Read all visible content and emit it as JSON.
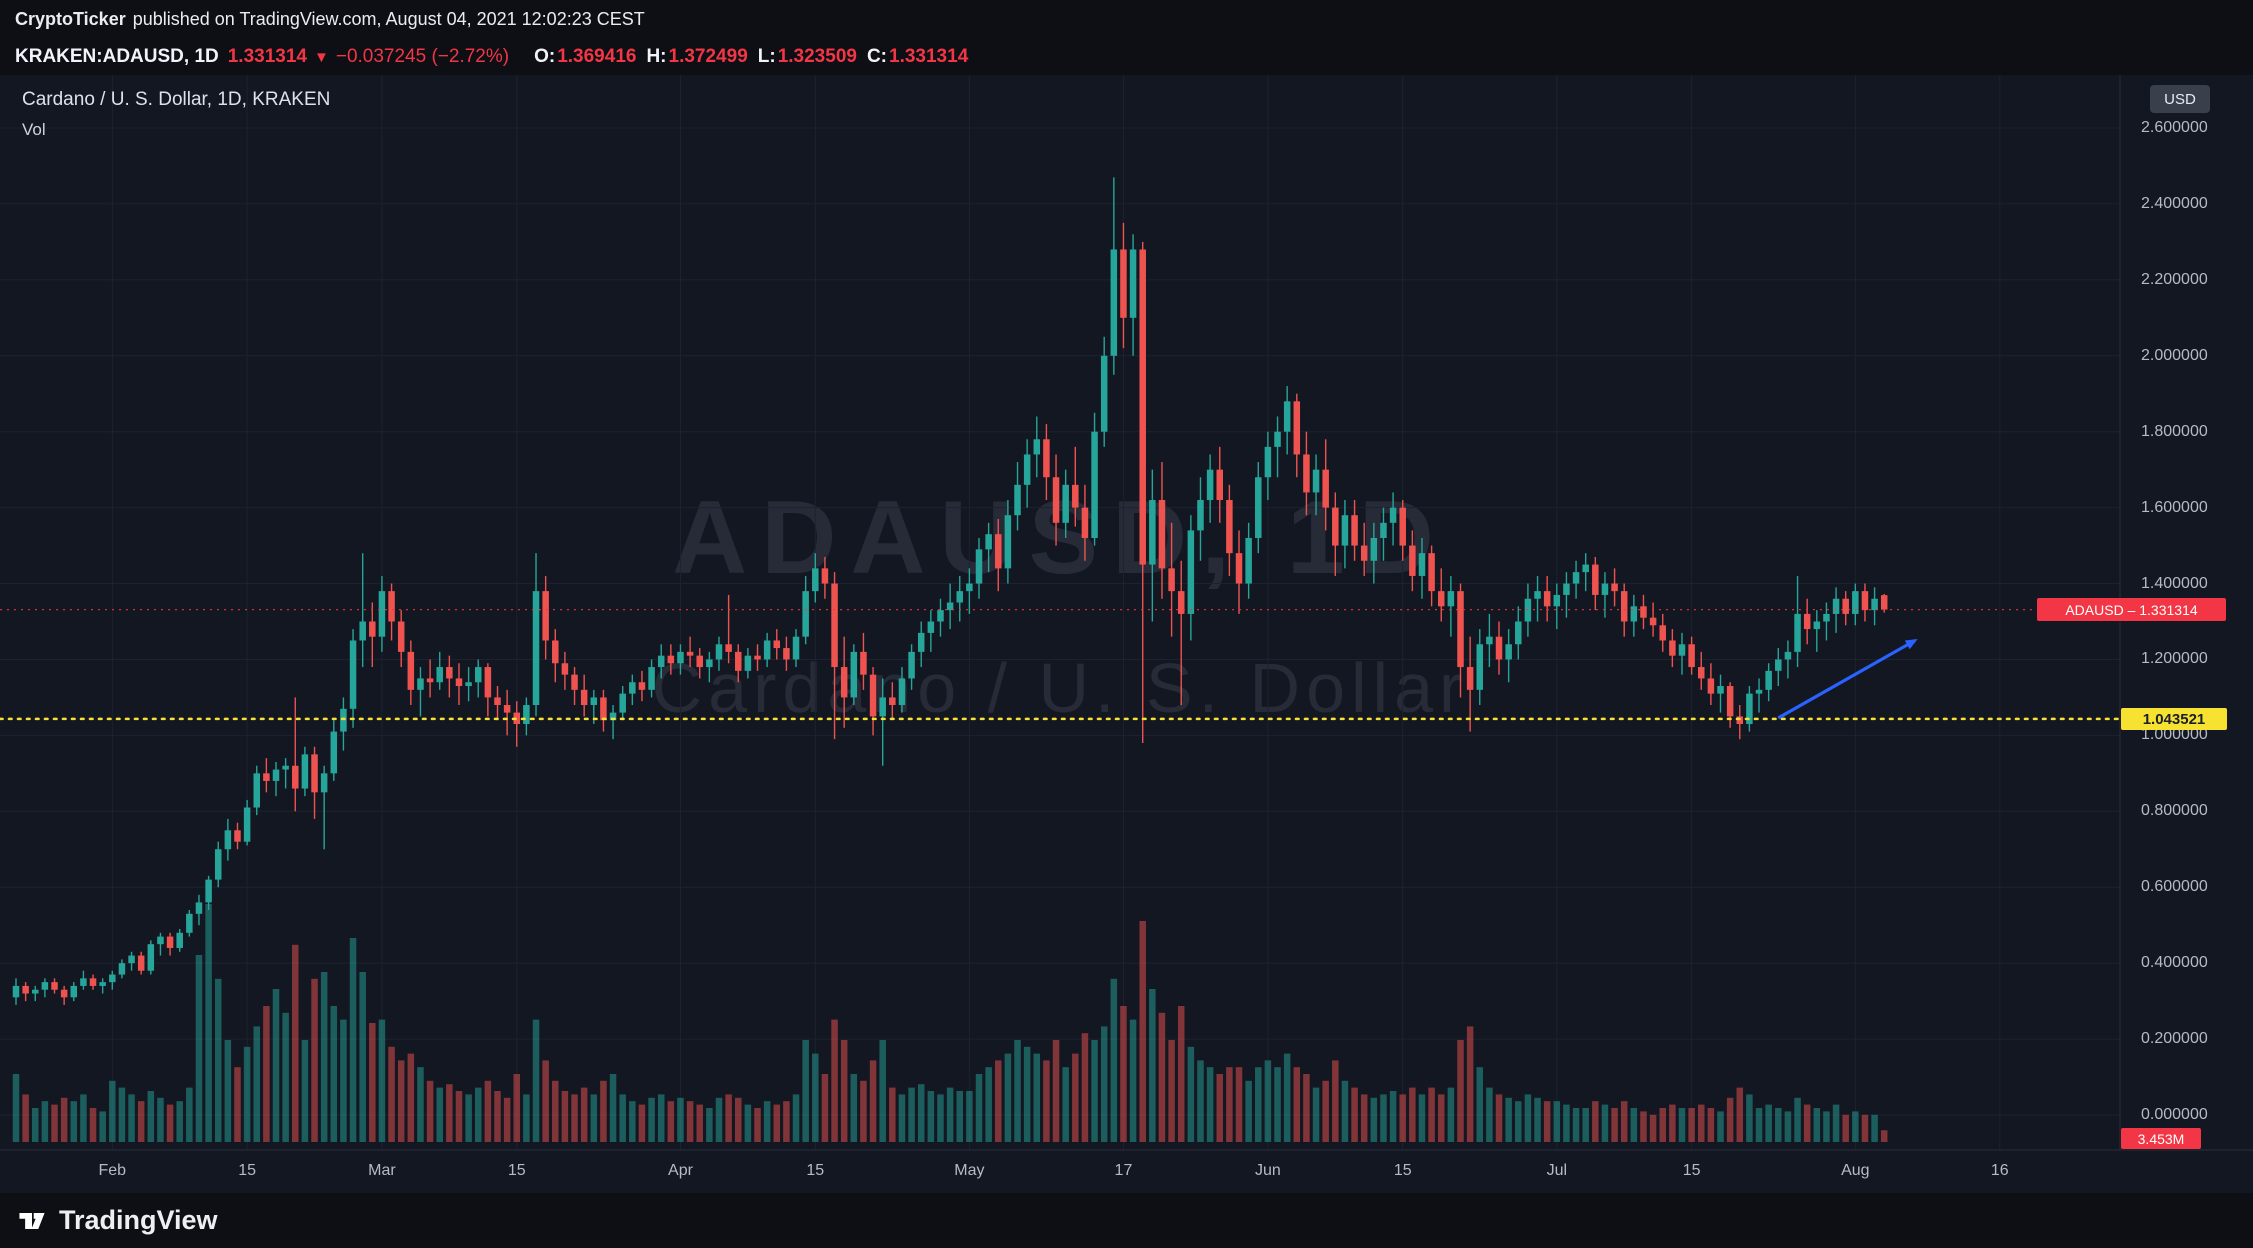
{
  "attribution": {
    "author": "CryptoTicker",
    "rest": "published on TradingView.com, August 04, 2021 12:02:23 CEST"
  },
  "symbol_bar": {
    "symbol_interval": "KRAKEN:ADAUSD, 1D",
    "last": "1.331314",
    "direction_icon": "▼",
    "change": "−0.037245 (−2.72%)",
    "ohlc": [
      {
        "k": "O:",
        "v": "1.369416"
      },
      {
        "k": "H:",
        "v": "1.372499"
      },
      {
        "k": "L:",
        "v": "1.323509"
      },
      {
        "k": "C:",
        "v": "1.331314"
      }
    ]
  },
  "legend": {
    "title": "Cardano / U. S. Dollar, 1D, KRAKEN",
    "indicator": "Vol"
  },
  "watermark": {
    "line1": "ADAUSD, 1D",
    "line2": "Cardano / U. S. Dollar"
  },
  "axis": {
    "currency": "USD",
    "price_ticks": [
      "2.600000",
      "2.400000",
      "2.200000",
      "2.000000",
      "1.800000",
      "1.600000",
      "1.400000",
      "1.200000",
      "1.000000",
      "0.800000",
      "0.600000",
      "0.400000",
      "0.200000",
      "0.000000"
    ],
    "time_ticks": [
      {
        "label": "Feb",
        "day": 10
      },
      {
        "label": "15",
        "day": 24
      },
      {
        "label": "Mar",
        "day": 38
      },
      {
        "label": "15",
        "day": 52
      },
      {
        "label": "Apr",
        "day": 69
      },
      {
        "label": "15",
        "day": 83
      },
      {
        "label": "May",
        "day": 99
      },
      {
        "label": "17",
        "day": 115
      },
      {
        "label": "Jun",
        "day": 130
      },
      {
        "label": "15",
        "day": 144
      },
      {
        "label": "Jul",
        "day": 160
      },
      {
        "label": "15",
        "day": 174
      },
      {
        "label": "Aug",
        "day": 191
      },
      {
        "label": "16",
        "day": 206
      }
    ]
  },
  "badges": {
    "last": "ADAUSD – 1.331314",
    "support": "1.043521",
    "volume": "3.453M"
  },
  "footer": {
    "brand": "TradingView"
  },
  "colors": {
    "up": "#26a69a",
    "down": "#ef5350",
    "accent_red": "#f23645",
    "support_yellow": "#f7e232",
    "arrow_blue": "#2962ff",
    "background": "#131722"
  },
  "chart_data": {
    "type": "candlestick",
    "title": "Cardano / U. S. Dollar, 1D, KRAKEN",
    "symbol": "ADAUSD",
    "exchange": "KRAKEN",
    "interval": "1D",
    "start_date": "2021-01-22",
    "price_axis_range": [
      0.0,
      2.6
    ],
    "grid": true,
    "volume_unit": "M",
    "columns": [
      "open",
      "high",
      "low",
      "close",
      "volume_millions"
    ],
    "candles": [
      [
        0.31,
        0.36,
        0.29,
        0.34,
        20
      ],
      [
        0.34,
        0.35,
        0.3,
        0.32,
        14
      ],
      [
        0.32,
        0.34,
        0.3,
        0.33,
        10
      ],
      [
        0.33,
        0.36,
        0.31,
        0.35,
        12
      ],
      [
        0.35,
        0.36,
        0.32,
        0.33,
        11
      ],
      [
        0.33,
        0.34,
        0.29,
        0.31,
        13
      ],
      [
        0.31,
        0.35,
        0.3,
        0.34,
        12
      ],
      [
        0.34,
        0.38,
        0.33,
        0.36,
        14
      ],
      [
        0.36,
        0.37,
        0.33,
        0.34,
        10
      ],
      [
        0.34,
        0.36,
        0.32,
        0.35,
        9
      ],
      [
        0.35,
        0.38,
        0.33,
        0.37,
        18
      ],
      [
        0.37,
        0.41,
        0.36,
        0.4,
        16
      ],
      [
        0.4,
        0.43,
        0.38,
        0.42,
        14
      ],
      [
        0.42,
        0.43,
        0.37,
        0.38,
        12
      ],
      [
        0.38,
        0.46,
        0.37,
        0.45,
        15
      ],
      [
        0.45,
        0.48,
        0.42,
        0.47,
        13
      ],
      [
        0.47,
        0.48,
        0.42,
        0.44,
        11
      ],
      [
        0.44,
        0.49,
        0.43,
        0.48,
        12
      ],
      [
        0.48,
        0.54,
        0.47,
        0.53,
        16
      ],
      [
        0.53,
        0.58,
        0.5,
        0.56,
        55
      ],
      [
        0.56,
        0.63,
        0.54,
        0.62,
        70
      ],
      [
        0.62,
        0.72,
        0.6,
        0.7,
        48
      ],
      [
        0.7,
        0.78,
        0.67,
        0.75,
        30
      ],
      [
        0.75,
        0.77,
        0.7,
        0.72,
        22
      ],
      [
        0.72,
        0.83,
        0.71,
        0.81,
        28
      ],
      [
        0.81,
        0.92,
        0.79,
        0.9,
        34
      ],
      [
        0.9,
        0.94,
        0.85,
        0.88,
        40
      ],
      [
        0.88,
        0.93,
        0.84,
        0.91,
        45
      ],
      [
        0.91,
        0.94,
        0.86,
        0.92,
        38
      ],
      [
        0.92,
        1.1,
        0.8,
        0.86,
        58
      ],
      [
        0.86,
        0.97,
        0.84,
        0.95,
        30
      ],
      [
        0.95,
        0.97,
        0.78,
        0.85,
        48
      ],
      [
        0.85,
        0.92,
        0.7,
        0.9,
        50
      ],
      [
        0.9,
        1.04,
        0.88,
        1.01,
        40
      ],
      [
        1.01,
        1.1,
        0.96,
        1.07,
        36
      ],
      [
        1.07,
        1.28,
        1.02,
        1.25,
        60
      ],
      [
        1.25,
        1.48,
        1.18,
        1.3,
        50
      ],
      [
        1.3,
        1.35,
        1.18,
        1.26,
        35
      ],
      [
        1.26,
        1.42,
        1.22,
        1.38,
        36
      ],
      [
        1.38,
        1.4,
        1.25,
        1.3,
        28
      ],
      [
        1.3,
        1.33,
        1.18,
        1.22,
        24
      ],
      [
        1.22,
        1.25,
        1.08,
        1.12,
        26
      ],
      [
        1.12,
        1.18,
        1.05,
        1.15,
        22
      ],
      [
        1.15,
        1.2,
        1.1,
        1.14,
        18
      ],
      [
        1.14,
        1.22,
        1.12,
        1.18,
        16
      ],
      [
        1.18,
        1.21,
        1.1,
        1.15,
        17
      ],
      [
        1.15,
        1.19,
        1.08,
        1.13,
        15
      ],
      [
        1.13,
        1.18,
        1.09,
        1.14,
        14
      ],
      [
        1.14,
        1.2,
        1.1,
        1.18,
        16
      ],
      [
        1.18,
        1.19,
        1.05,
        1.1,
        18
      ],
      [
        1.1,
        1.13,
        1.04,
        1.08,
        15
      ],
      [
        1.08,
        1.12,
        1.0,
        1.06,
        13
      ],
      [
        1.06,
        1.09,
        0.97,
        1.03,
        20
      ],
      [
        1.03,
        1.1,
        1.0,
        1.08,
        14
      ],
      [
        1.08,
        1.48,
        1.05,
        1.38,
        36
      ],
      [
        1.38,
        1.42,
        1.2,
        1.25,
        24
      ],
      [
        1.25,
        1.28,
        1.14,
        1.19,
        18
      ],
      [
        1.19,
        1.22,
        1.12,
        1.16,
        15
      ],
      [
        1.16,
        1.18,
        1.08,
        1.12,
        14
      ],
      [
        1.12,
        1.16,
        1.05,
        1.08,
        16
      ],
      [
        1.08,
        1.12,
        1.03,
        1.1,
        14
      ],
      [
        1.1,
        1.12,
        1.01,
        1.04,
        18
      ],
      [
        1.04,
        1.08,
        0.99,
        1.06,
        20
      ],
      [
        1.06,
        1.13,
        1.04,
        1.11,
        14
      ],
      [
        1.11,
        1.16,
        1.08,
        1.14,
        12
      ],
      [
        1.14,
        1.17,
        1.09,
        1.12,
        11
      ],
      [
        1.12,
        1.2,
        1.1,
        1.18,
        13
      ],
      [
        1.18,
        1.24,
        1.15,
        1.21,
        14
      ],
      [
        1.21,
        1.24,
        1.16,
        1.19,
        12
      ],
      [
        1.19,
        1.24,
        1.16,
        1.22,
        13
      ],
      [
        1.22,
        1.26,
        1.18,
        1.21,
        12
      ],
      [
        1.21,
        1.23,
        1.15,
        1.18,
        11
      ],
      [
        1.18,
        1.22,
        1.14,
        1.2,
        10
      ],
      [
        1.2,
        1.26,
        1.17,
        1.24,
        13
      ],
      [
        1.24,
        1.37,
        1.19,
        1.22,
        14
      ],
      [
        1.22,
        1.24,
        1.14,
        1.17,
        13
      ],
      [
        1.17,
        1.23,
        1.15,
        1.21,
        11
      ],
      [
        1.21,
        1.24,
        1.17,
        1.2,
        10
      ],
      [
        1.2,
        1.27,
        1.18,
        1.25,
        12
      ],
      [
        1.25,
        1.28,
        1.2,
        1.23,
        11
      ],
      [
        1.23,
        1.26,
        1.17,
        1.2,
        12
      ],
      [
        1.2,
        1.28,
        1.18,
        1.26,
        14
      ],
      [
        1.26,
        1.42,
        1.24,
        1.38,
        30
      ],
      [
        1.38,
        1.48,
        1.35,
        1.44,
        26
      ],
      [
        1.44,
        1.47,
        1.36,
        1.4,
        20
      ],
      [
        1.4,
        1.43,
        0.99,
        1.18,
        36
      ],
      [
        1.18,
        1.26,
        1.02,
        1.1,
        30
      ],
      [
        1.1,
        1.24,
        1.08,
        1.22,
        20
      ],
      [
        1.22,
        1.27,
        1.12,
        1.16,
        18
      ],
      [
        1.16,
        1.18,
        1.0,
        1.05,
        24
      ],
      [
        1.05,
        1.15,
        0.92,
        1.1,
        30
      ],
      [
        1.1,
        1.14,
        1.04,
        1.08,
        16
      ],
      [
        1.08,
        1.18,
        1.06,
        1.15,
        14
      ],
      [
        1.15,
        1.24,
        1.12,
        1.22,
        16
      ],
      [
        1.22,
        1.3,
        1.18,
        1.27,
        17
      ],
      [
        1.27,
        1.33,
        1.22,
        1.3,
        15
      ],
      [
        1.3,
        1.36,
        1.26,
        1.33,
        14
      ],
      [
        1.33,
        1.4,
        1.28,
        1.35,
        16
      ],
      [
        1.35,
        1.42,
        1.3,
        1.38,
        15
      ],
      [
        1.38,
        1.44,
        1.32,
        1.4,
        15
      ],
      [
        1.4,
        1.52,
        1.36,
        1.49,
        20
      ],
      [
        1.49,
        1.56,
        1.43,
        1.53,
        22
      ],
      [
        1.53,
        1.57,
        1.38,
        1.44,
        24
      ],
      [
        1.44,
        1.62,
        1.4,
        1.58,
        26
      ],
      [
        1.58,
        1.72,
        1.54,
        1.66,
        30
      ],
      [
        1.66,
        1.78,
        1.6,
        1.74,
        28
      ],
      [
        1.74,
        1.84,
        1.68,
        1.78,
        26
      ],
      [
        1.78,
        1.82,
        1.62,
        1.68,
        24
      ],
      [
        1.68,
        1.74,
        1.5,
        1.56,
        30
      ],
      [
        1.56,
        1.7,
        1.52,
        1.66,
        22
      ],
      [
        1.66,
        1.76,
        1.55,
        1.6,
        26
      ],
      [
        1.6,
        1.66,
        1.46,
        1.52,
        32
      ],
      [
        1.52,
        1.85,
        1.5,
        1.8,
        30
      ],
      [
        1.8,
        2.05,
        1.76,
        2.0,
        34
      ],
      [
        2.0,
        2.47,
        1.95,
        2.28,
        48
      ],
      [
        2.28,
        2.35,
        2.02,
        2.1,
        40
      ],
      [
        2.1,
        2.32,
        2.0,
        2.28,
        36
      ],
      [
        2.28,
        2.3,
        0.98,
        1.45,
        65
      ],
      [
        1.45,
        1.7,
        1.3,
        1.62,
        45
      ],
      [
        1.62,
        1.72,
        1.36,
        1.44,
        38
      ],
      [
        1.44,
        1.56,
        1.26,
        1.38,
        30
      ],
      [
        1.38,
        1.46,
        1.08,
        1.32,
        40
      ],
      [
        1.32,
        1.58,
        1.25,
        1.54,
        28
      ],
      [
        1.54,
        1.68,
        1.46,
        1.62,
        24
      ],
      [
        1.62,
        1.74,
        1.56,
        1.7,
        22
      ],
      [
        1.7,
        1.76,
        1.56,
        1.62,
        20
      ],
      [
        1.62,
        1.66,
        1.42,
        1.48,
        22
      ],
      [
        1.48,
        1.54,
        1.32,
        1.4,
        22
      ],
      [
        1.4,
        1.56,
        1.36,
        1.52,
        18
      ],
      [
        1.52,
        1.72,
        1.48,
        1.68,
        22
      ],
      [
        1.68,
        1.8,
        1.62,
        1.76,
        24
      ],
      [
        1.76,
        1.84,
        1.68,
        1.8,
        22
      ],
      [
        1.8,
        1.92,
        1.74,
        1.88,
        26
      ],
      [
        1.88,
        1.9,
        1.68,
        1.74,
        22
      ],
      [
        1.74,
        1.8,
        1.58,
        1.64,
        20
      ],
      [
        1.64,
        1.74,
        1.58,
        1.7,
        16
      ],
      [
        1.7,
        1.78,
        1.54,
        1.6,
        18
      ],
      [
        1.6,
        1.64,
        1.42,
        1.5,
        24
      ],
      [
        1.5,
        1.62,
        1.44,
        1.58,
        18
      ],
      [
        1.58,
        1.62,
        1.46,
        1.5,
        16
      ],
      [
        1.5,
        1.56,
        1.42,
        1.46,
        14
      ],
      [
        1.46,
        1.56,
        1.4,
        1.52,
        13
      ],
      [
        1.52,
        1.6,
        1.46,
        1.56,
        14
      ],
      [
        1.56,
        1.64,
        1.5,
        1.6,
        15
      ],
      [
        1.6,
        1.62,
        1.46,
        1.5,
        14
      ],
      [
        1.5,
        1.54,
        1.38,
        1.42,
        16
      ],
      [
        1.42,
        1.52,
        1.36,
        1.48,
        14
      ],
      [
        1.48,
        1.5,
        1.34,
        1.38,
        16
      ],
      [
        1.38,
        1.44,
        1.3,
        1.34,
        14
      ],
      [
        1.34,
        1.42,
        1.26,
        1.38,
        16
      ],
      [
        1.38,
        1.4,
        1.1,
        1.18,
        30
      ],
      [
        1.18,
        1.26,
        1.01,
        1.12,
        34
      ],
      [
        1.12,
        1.28,
        1.08,
        1.24,
        22
      ],
      [
        1.24,
        1.32,
        1.18,
        1.26,
        16
      ],
      [
        1.26,
        1.3,
        1.16,
        1.2,
        14
      ],
      [
        1.2,
        1.28,
        1.14,
        1.24,
        13
      ],
      [
        1.24,
        1.34,
        1.2,
        1.3,
        12
      ],
      [
        1.3,
        1.4,
        1.26,
        1.36,
        14
      ],
      [
        1.36,
        1.42,
        1.3,
        1.38,
        13
      ],
      [
        1.38,
        1.42,
        1.3,
        1.34,
        12
      ],
      [
        1.34,
        1.4,
        1.28,
        1.37,
        12
      ],
      [
        1.37,
        1.43,
        1.31,
        1.4,
        11
      ],
      [
        1.4,
        1.46,
        1.36,
        1.43,
        10
      ],
      [
        1.43,
        1.48,
        1.38,
        1.45,
        10
      ],
      [
        1.45,
        1.47,
        1.33,
        1.37,
        12
      ],
      [
        1.37,
        1.43,
        1.31,
        1.4,
        11
      ],
      [
        1.4,
        1.44,
        1.34,
        1.38,
        10
      ],
      [
        1.38,
        1.4,
        1.26,
        1.3,
        12
      ],
      [
        1.3,
        1.37,
        1.26,
        1.34,
        10
      ],
      [
        1.34,
        1.37,
        1.28,
        1.31,
        9
      ],
      [
        1.31,
        1.35,
        1.26,
        1.29,
        8
      ],
      [
        1.29,
        1.32,
        1.22,
        1.25,
        10
      ],
      [
        1.25,
        1.28,
        1.18,
        1.21,
        11
      ],
      [
        1.21,
        1.27,
        1.16,
        1.24,
        10
      ],
      [
        1.24,
        1.26,
        1.16,
        1.18,
        10
      ],
      [
        1.18,
        1.22,
        1.12,
        1.15,
        11
      ],
      [
        1.15,
        1.19,
        1.08,
        1.11,
        10
      ],
      [
        1.11,
        1.16,
        1.06,
        1.13,
        9
      ],
      [
        1.13,
        1.14,
        1.02,
        1.05,
        13
      ],
      [
        1.05,
        1.08,
        0.99,
        1.03,
        16
      ],
      [
        1.03,
        1.13,
        1.01,
        1.11,
        14
      ],
      [
        1.11,
        1.15,
        1.06,
        1.12,
        10
      ],
      [
        1.12,
        1.19,
        1.09,
        1.17,
        11
      ],
      [
        1.17,
        1.23,
        1.13,
        1.2,
        10
      ],
      [
        1.2,
        1.25,
        1.15,
        1.22,
        9
      ],
      [
        1.22,
        1.42,
        1.18,
        1.32,
        13
      ],
      [
        1.32,
        1.36,
        1.24,
        1.28,
        11
      ],
      [
        1.28,
        1.33,
        1.22,
        1.3,
        10
      ],
      [
        1.3,
        1.35,
        1.25,
        1.32,
        9
      ],
      [
        1.32,
        1.39,
        1.27,
        1.36,
        11
      ],
      [
        1.36,
        1.38,
        1.29,
        1.32,
        8
      ],
      [
        1.32,
        1.4,
        1.29,
        1.38,
        9
      ],
      [
        1.38,
        1.4,
        1.3,
        1.33,
        8
      ],
      [
        1.33,
        1.39,
        1.29,
        1.36,
        8
      ],
      [
        1.369416,
        1.372499,
        1.323509,
        1.331314,
        3.453
      ]
    ],
    "levels": [
      {
        "id": "support",
        "price": 1.043521,
        "style": "dotted",
        "color": "yellow"
      },
      {
        "id": "last",
        "price": 1.331314,
        "style": "dotted",
        "color": "red"
      }
    ],
    "annotation_arrow": {
      "from": {
        "day": 183,
        "price": 1.046
      },
      "to": {
        "day": 197.2,
        "price": 1.25
      }
    }
  }
}
